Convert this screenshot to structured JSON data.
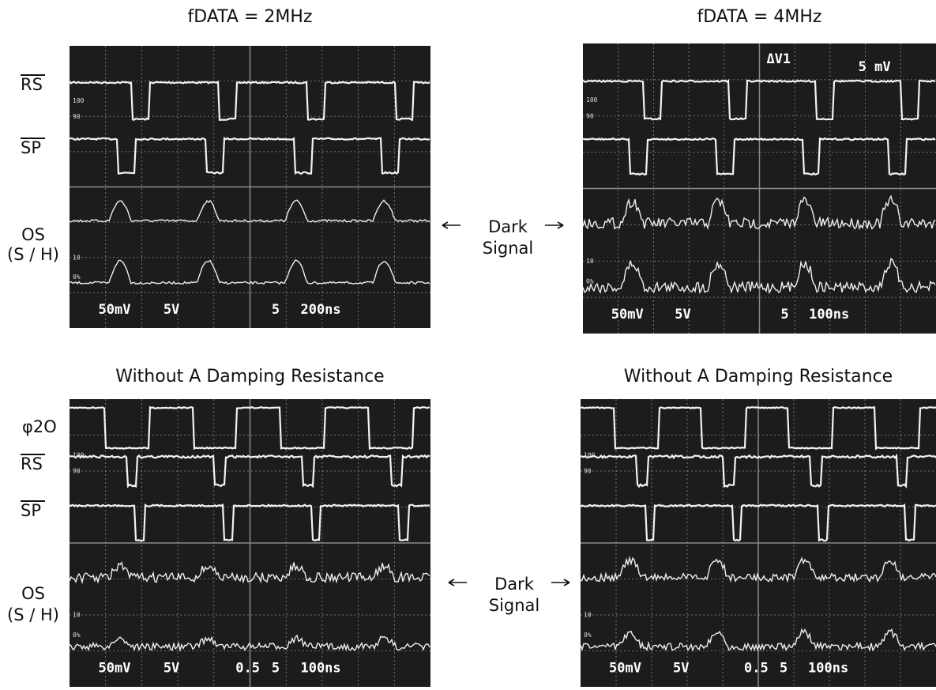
{
  "panels": [
    {
      "title": "fDATA = 2MHz",
      "readouts": [
        "50mV",
        "5V",
        "5",
        "200ns"
      ],
      "scale_marks": [
        "100",
        "90",
        "10",
        "0%"
      ]
    },
    {
      "title": "fDATA = 4MHz",
      "readouts": [
        "50mV",
        "5V",
        "5",
        "100ns"
      ],
      "scale_marks": [
        "100",
        "90",
        "10",
        "0%"
      ],
      "cursor": "ΔV1",
      "cursor_value": "5 mV"
    },
    {
      "title": "Without A Damping Resistance",
      "readouts": [
        "50mV",
        "5V",
        "0.5",
        "5",
        "100ns"
      ],
      "scale_marks": [
        "100",
        "90",
        "10",
        "0%"
      ]
    },
    {
      "title": "Without A Damping Resistance",
      "readouts": [
        "50mV",
        "5V",
        "0.5",
        "5",
        "100ns"
      ],
      "scale_marks": [
        "100",
        "90",
        "10",
        "0%"
      ]
    }
  ],
  "signal_labels": {
    "top": {
      "rs": "RS",
      "sp": "SP",
      "os": "OS",
      "os_sub": "(S / H)"
    },
    "bottom": {
      "phi": "φ2O",
      "rs": "RS",
      "sp": "SP",
      "os": "OS",
      "os_sub": "(S / H)"
    }
  },
  "annotations": [
    {
      "line1": "Dark",
      "line2": "Signal"
    },
    {
      "line1": "Dark",
      "line2": "Signal"
    }
  ]
}
